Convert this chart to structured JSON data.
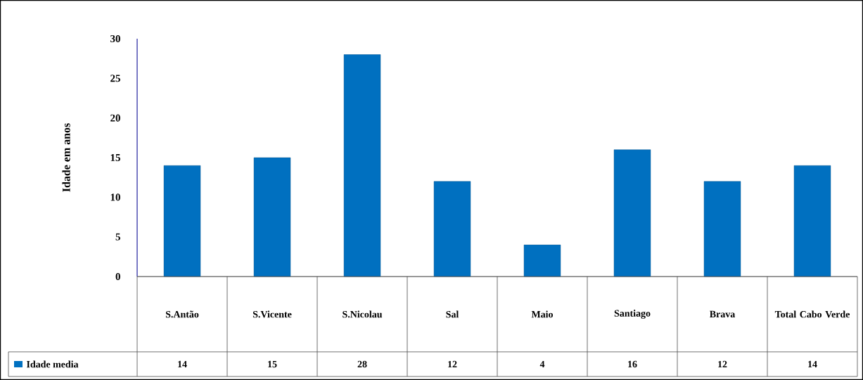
{
  "chart_data": {
    "type": "bar",
    "ylabel": "Idade em anos",
    "categories": [
      "S.Antão",
      "S.Vicente",
      "S.Nicolau",
      "Sal",
      "Maio",
      "Santiago",
      "Brava",
      "Total Cabo Verde"
    ],
    "series": [
      {
        "name": "Idade media",
        "color": "#0070c0",
        "values": [
          14,
          15,
          28,
          12,
          4,
          16,
          12,
          14
        ]
      }
    ],
    "ylim": [
      0,
      30
    ],
    "yticks": [
      0,
      5,
      10,
      15,
      20,
      25,
      30
    ],
    "data_labels": true,
    "legend": "bottom left"
  }
}
